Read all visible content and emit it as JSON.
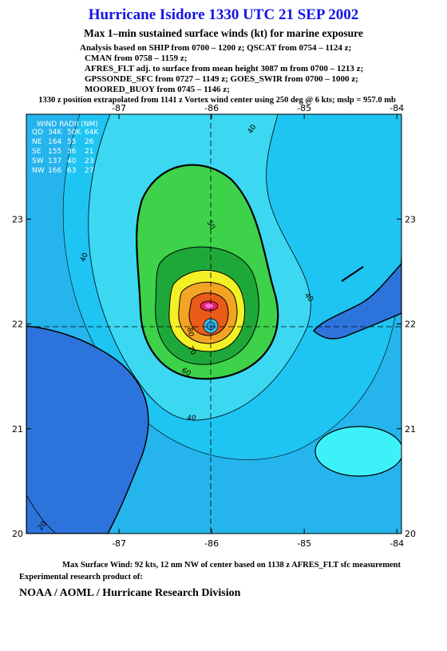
{
  "header": {
    "title": "Hurricane Isidore 1330 UTC 21 SEP 2002",
    "subtitle": "Max 1–min sustained surface winds (kt) for marine exposure",
    "analysis": [
      "Analysis based on  SHIP from 0700 – 1200 z;  QSCAT from 0754 – 1124 z;",
      "CMAN from 0758 – 1159 z;",
      "AFRES_FLT adj. to surface from mean height 3087 m from 0700 – 1213 z;",
      "GPSSONDE_SFC from 0727 – 1149 z;  GOES_SWIR from 0700 – 1000 z;",
      "MOORED_BUOY from 0745 – 1146 z;"
    ],
    "position_note": "1330 z position extrapolated from 1141 z Vortex wind center using 250 deg @ 6 kts; mslp = 957.0 mb"
  },
  "map": {
    "xlim": [
      -88,
      -83.95
    ],
    "ylim": [
      20,
      24
    ],
    "xticks": [
      -87,
      -86,
      -85,
      -84
    ],
    "yticks": [
      20,
      21,
      22,
      23
    ],
    "contour_labels": [
      40,
      50,
      40,
      40,
      40,
      60,
      70,
      80,
      20
    ],
    "wind_radii": {
      "title": "WIND RADII (NM)",
      "header": [
        "QD",
        "34K",
        "50K",
        "64K"
      ],
      "rows": [
        [
          "NE",
          "164",
          "55",
          "26"
        ],
        [
          "SE",
          "155",
          "36",
          "21"
        ],
        [
          "SW",
          "137",
          "40",
          "23"
        ],
        [
          "NW",
          "166",
          "63",
          "27"
        ]
      ]
    }
  },
  "footer": {
    "max_wind": "Max Surface Wind: 92 kts, 12 nm NW of center based on 1138 z AFRES_FLT sfc measurement",
    "product": "Experimental research product of:",
    "org": "NOAA / AOML / Hurricane Research Division"
  }
}
